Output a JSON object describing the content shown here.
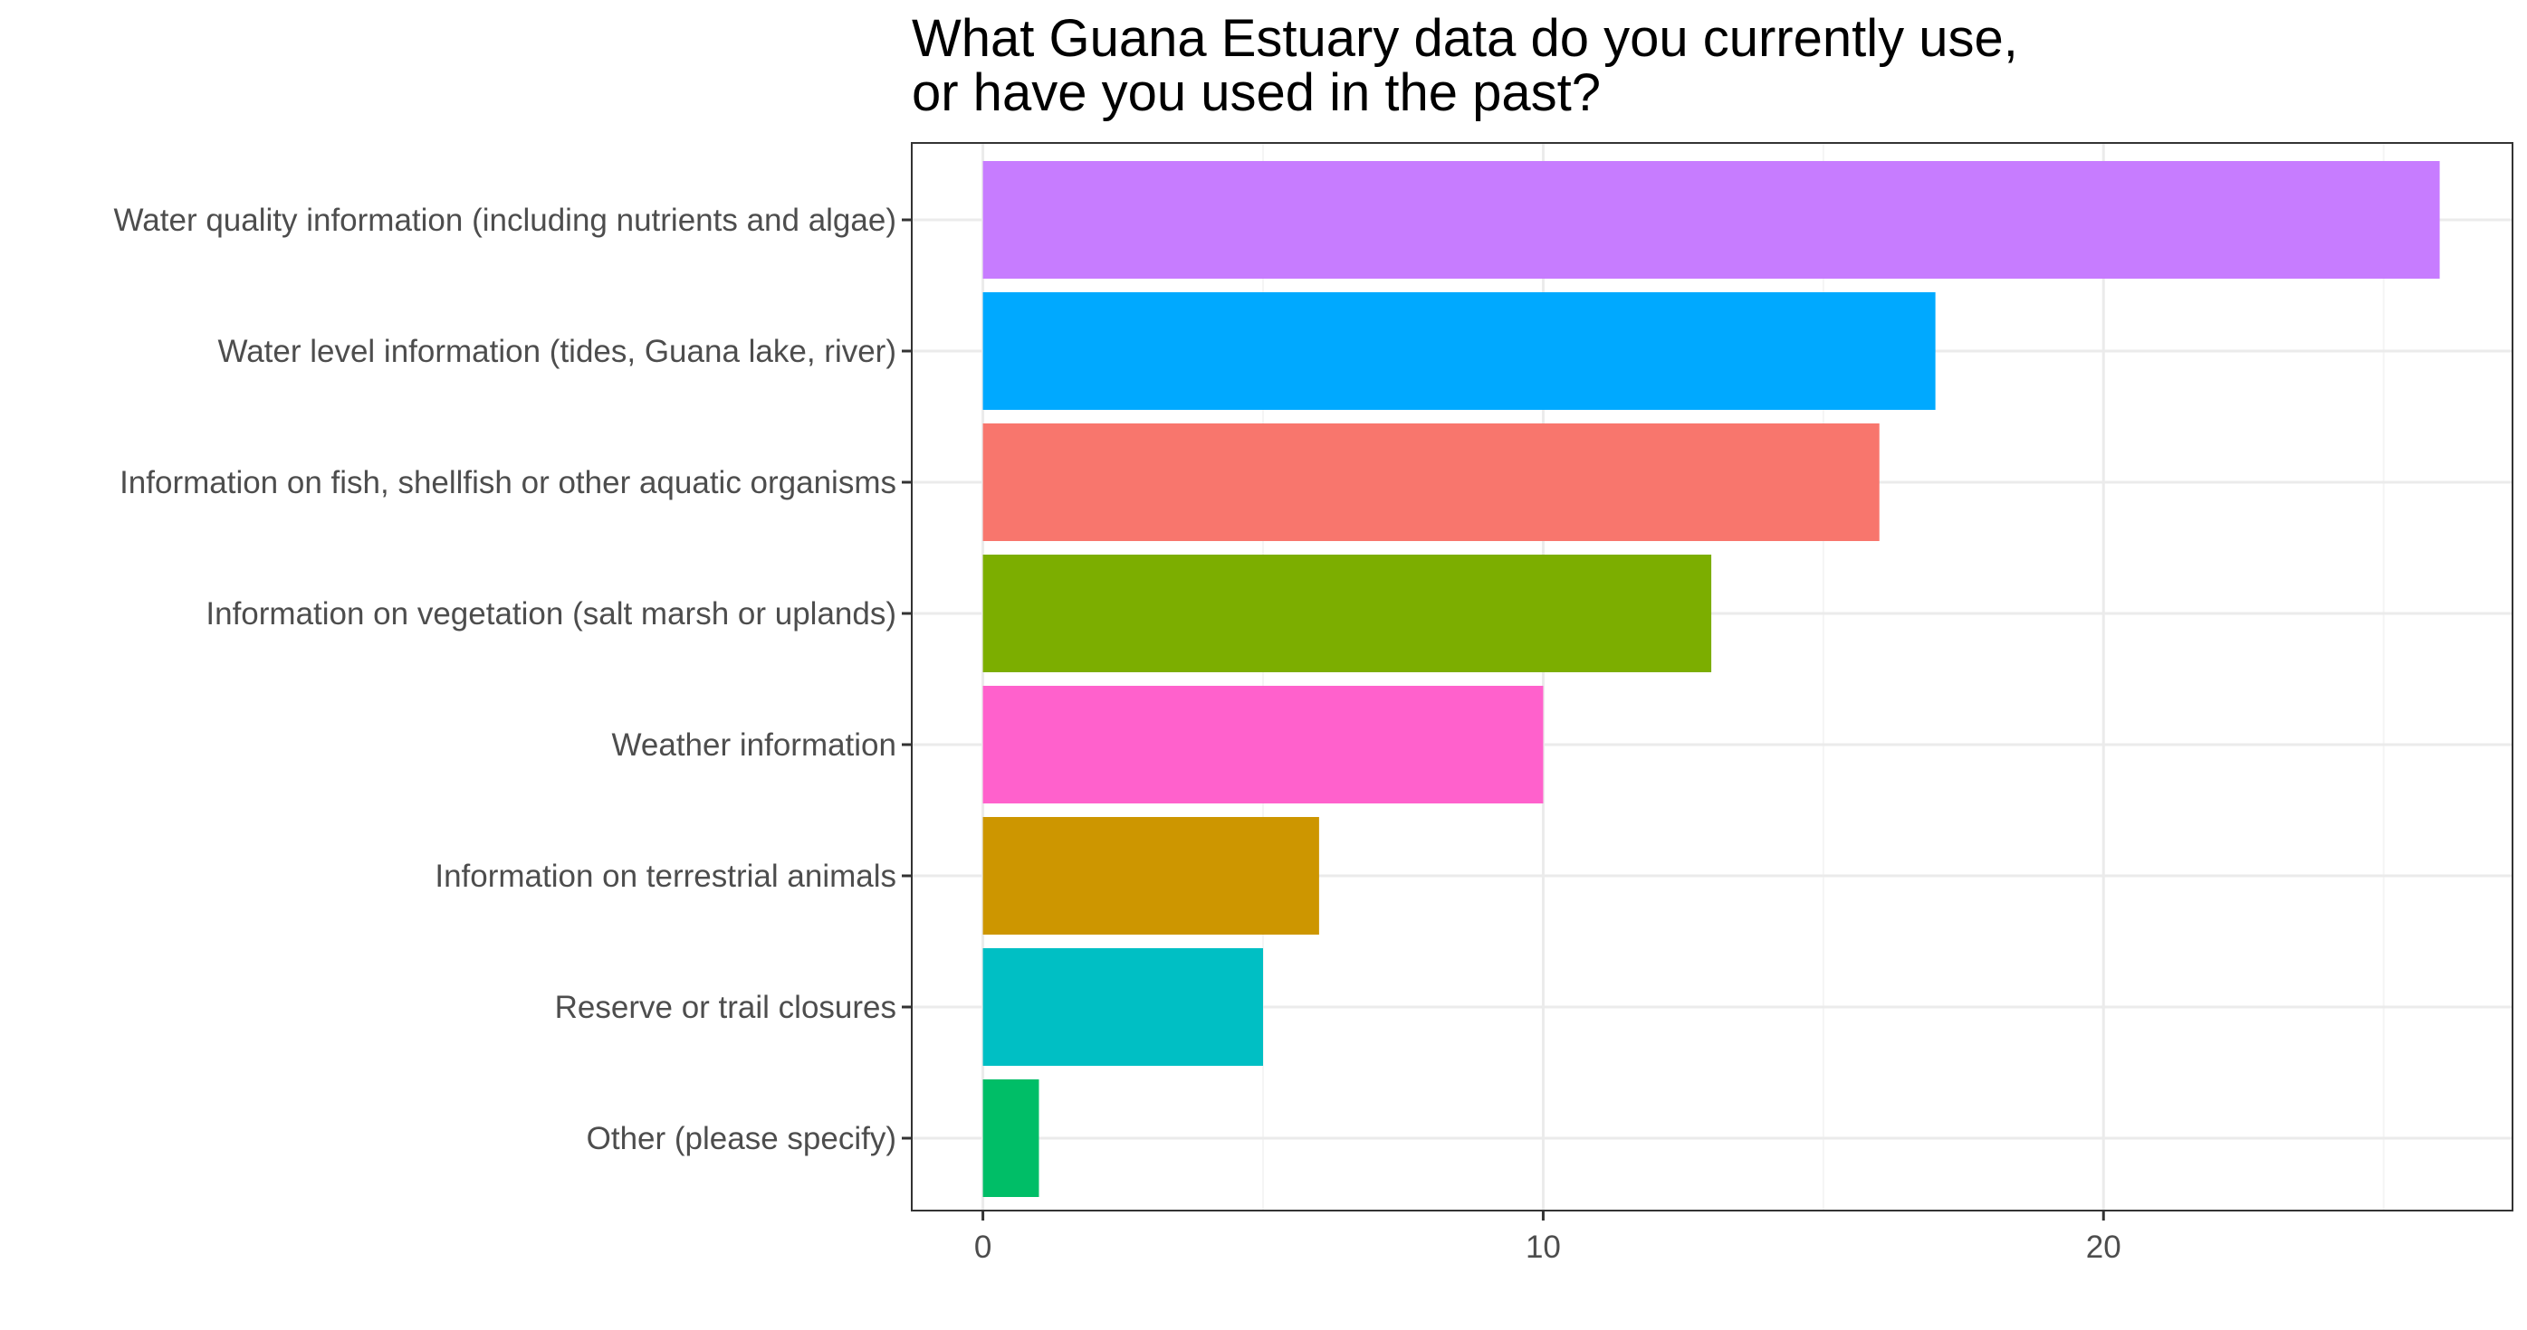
{
  "chart_data": {
    "type": "bar",
    "orientation": "horizontal",
    "title": "What Guana Estuary data do you currently use,\nor have you used in the past?",
    "title_lines": [
      "What Guana Estuary data do you currently use,",
      "or have you used in the past?"
    ],
    "xlabel": "",
    "ylabel": "",
    "categories": [
      "Water quality information (including nutrients and algae)",
      "Water level information (tides, Guana lake, river)",
      "Information on fish, shellfish or other aquatic organisms",
      "Information on vegetation (salt marsh or uplands)",
      "Weather information",
      "Information on terrestrial animals",
      "Reserve or trail closures",
      "Other (please specify)"
    ],
    "values": [
      26,
      17,
      16,
      13,
      10,
      6,
      5,
      1
    ],
    "colors": [
      "#C77CFF",
      "#00A9FF",
      "#F8766D",
      "#7CAE00",
      "#FF61CC",
      "#CD9600",
      "#00BFC4",
      "#00BE67"
    ],
    "xlim": [
      -1.27,
      27.3
    ],
    "xticks": [
      0,
      10,
      20
    ],
    "xtick_labels": [
      "0",
      "10",
      "20"
    ],
    "grid": true,
    "legend": "none",
    "panel_border_color": "#333333",
    "grid_major_color": "#EBEBEB",
    "grid_minor_color": "#F5F5F5"
  }
}
